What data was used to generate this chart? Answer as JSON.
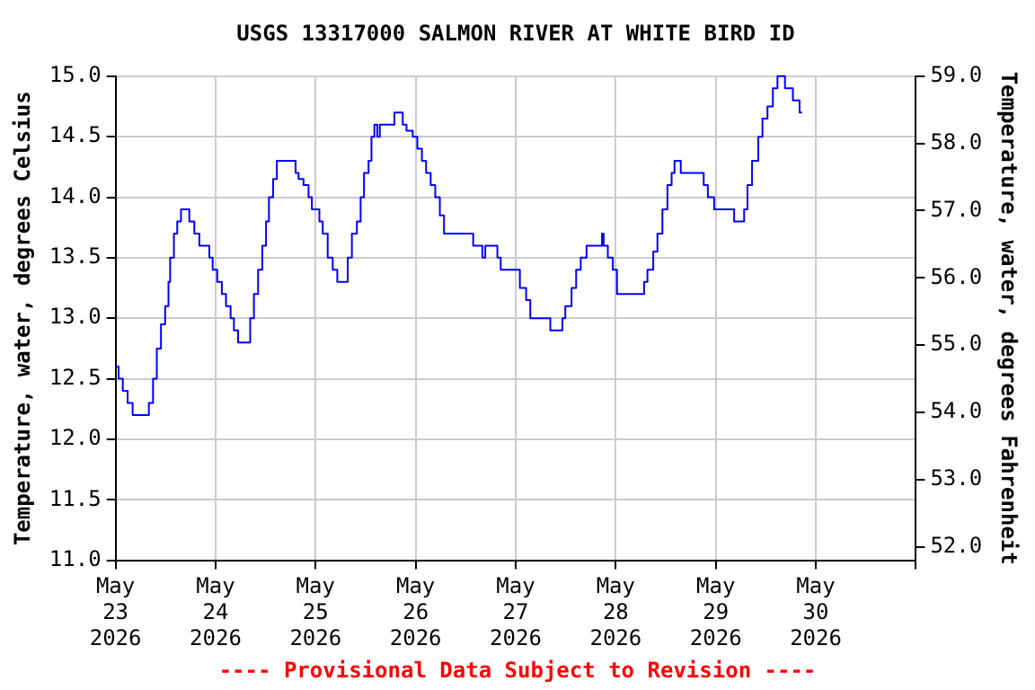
{
  "chart_data": {
    "type": "step",
    "title": "USGS 13317000 SALMON RIVER AT WHITE BIRD ID",
    "ylabel": "Temperature, water, degrees Celsius",
    "y2label": "Temperature, water, degrees Fahrenheit",
    "annotations": [
      "---- Provisional Data Subject to Revision ----"
    ],
    "x": [
      "2026-05-23T00:00",
      "2026-05-23T00:44",
      "2026-05-23T01:45",
      "2026-05-23T02:54",
      "2026-05-23T04:06",
      "2026-05-23T05:12",
      "2026-05-23T08:00",
      "2026-05-23T09:00",
      "2026-05-23T09:54",
      "2026-05-23T10:54",
      "2026-05-23T11:54",
      "2026-05-23T12:42",
      "2026-05-23T13:06",
      "2026-05-23T14:00",
      "2026-05-23T14:48",
      "2026-05-23T15:42",
      "2026-05-23T16:36",
      "2026-05-23T17:42",
      "2026-05-23T18:54",
      "2026-05-23T20:06",
      "2026-05-23T21:06",
      "2026-05-23T22:30",
      "2026-05-23T23:18",
      "2026-05-24T00:24",
      "2026-05-24T01:30",
      "2026-05-24T02:30",
      "2026-05-24T03:36",
      "2026-05-24T04:24",
      "2026-05-24T05:24",
      "2026-05-24T06:18",
      "2026-05-24T08:18",
      "2026-05-24T09:12",
      "2026-05-24T10:12",
      "2026-05-24T11:12",
      "2026-05-24T12:06",
      "2026-05-24T12:48",
      "2026-05-24T13:48",
      "2026-05-24T14:42",
      "2026-05-24T15:54",
      "2026-05-24T19:12",
      "2026-05-24T19:54",
      "2026-05-24T21:06",
      "2026-05-24T22:18",
      "2026-05-24T23:06",
      "2026-05-25T00:54",
      "2026-05-25T01:42",
      "2026-05-25T02:54",
      "2026-05-25T04:06",
      "2026-05-25T05:12",
      "2026-05-25T06:30",
      "2026-05-25T07:42",
      "2026-05-25T08:42",
      "2026-05-25T09:54",
      "2026-05-25T10:48",
      "2026-05-25T11:36",
      "2026-05-25T12:42",
      "2026-05-25T13:24",
      "2026-05-25T14:06",
      "2026-05-25T14:48",
      "2026-05-25T15:24",
      "2026-05-25T16:42",
      "2026-05-25T18:54",
      "2026-05-25T19:48",
      "2026-05-25T20:54",
      "2026-05-25T21:48",
      "2026-05-25T23:18",
      "2026-05-26T00:24",
      "2026-05-26T01:30",
      "2026-05-26T02:30",
      "2026-05-26T03:36",
      "2026-05-26T04:42",
      "2026-05-26T05:48",
      "2026-05-26T06:48",
      "2026-05-26T07:42",
      "2026-05-26T13:48",
      "2026-05-26T14:48",
      "2026-05-26T16:00",
      "2026-05-26T16:42",
      "2026-05-26T17:54",
      "2026-05-26T19:36",
      "2026-05-26T20:24",
      "2026-05-26T22:30",
      "2026-05-27T01:00",
      "2026-05-27T02:30",
      "2026-05-27T03:30",
      "2026-05-27T04:42",
      "2026-05-27T08:18",
      "2026-05-27T09:00",
      "2026-05-27T11:12",
      "2026-05-27T11:54",
      "2026-05-27T13:24",
      "2026-05-27T14:30",
      "2026-05-27T15:36",
      "2026-05-27T17:00",
      "2026-05-27T18:54",
      "2026-05-27T20:42",
      "2026-05-27T21:06",
      "2026-05-27T22:06",
      "2026-05-27T23:18",
      "2026-05-28T00:18",
      "2026-05-28T01:42",
      "2026-05-28T06:48",
      "2026-05-28T07:36",
      "2026-05-28T09:00",
      "2026-05-28T10:00",
      "2026-05-28T11:12",
      "2026-05-28T12:24",
      "2026-05-28T13:24",
      "2026-05-28T14:06",
      "2026-05-28T15:36",
      "2026-05-28T15:54",
      "2026-05-28T21:06",
      "2026-05-28T22:06",
      "2026-05-28T23:36",
      "2026-05-29T01:00",
      "2026-05-29T04:24",
      "2026-05-29T04:42",
      "2026-05-29T06:48",
      "2026-05-29T07:36",
      "2026-05-29T08:42",
      "2026-05-29T10:12",
      "2026-05-29T11:12",
      "2026-05-29T12:24",
      "2026-05-29T13:42",
      "2026-05-29T14:48",
      "2026-05-29T15:36",
      "2026-05-29T16:36",
      "2026-05-29T17:18",
      "2026-05-29T18:30",
      "2026-05-29T19:12",
      "2026-05-29T20:06",
      "2026-05-29T20:42"
    ],
    "series": [
      {
        "color": "#0000ff",
        "values": [
          12.6,
          12.6,
          12.5,
          12.4,
          12.3,
          12.2,
          12.2,
          12.3,
          12.5,
          12.75,
          12.95,
          13.1,
          13.3,
          13.5,
          13.7,
          13.8,
          13.9,
          13.9,
          13.8,
          13.7,
          13.6,
          13.6,
          13.5,
          13.4,
          13.3,
          13.2,
          13.1,
          13.0,
          12.9,
          12.8,
          12.8,
          13.0,
          13.2,
          13.4,
          13.6,
          13.8,
          14.0,
          14.15,
          14.3,
          14.3,
          14.2,
          14.15,
          14.1,
          14.0,
          13.9,
          13.8,
          13.7,
          13.5,
          13.4,
          13.3,
          13.3,
          13.5,
          13.7,
          13.8,
          14.0,
          14.2,
          14.3,
          14.5,
          14.6,
          14.5,
          14.6,
          14.6,
          14.7,
          14.7,
          14.6,
          14.55,
          14.5,
          14.4,
          14.3,
          14.2,
          14.1,
          14.0,
          13.85,
          13.7,
          13.7,
          13.6,
          13.6,
          13.5,
          13.6,
          13.6,
          13.5,
          13.4,
          13.4,
          13.25,
          13.15,
          13.0,
          13.0,
          12.9,
          12.9,
          13.0,
          13.1,
          13.25,
          13.4,
          13.5,
          13.6,
          13.6,
          13.7,
          13.6,
          13.5,
          13.4,
          13.2,
          13.2,
          13.3,
          13.4,
          13.55,
          13.7,
          13.9,
          14.1,
          14.2,
          14.3,
          14.2,
          14.2,
          14.1,
          14.0,
          13.9,
          13.9,
          13.8,
          13.8,
          13.9,
          14.1,
          14.3,
          14.5,
          14.65,
          14.75,
          14.9,
          15.0,
          15.0,
          14.9,
          14.9,
          14.8,
          14.8,
          14.7
        ]
      }
    ],
    "xlim": [
      "2026-05-23",
      "2026-05-31"
    ],
    "xticks": [
      {
        "value": "2026-05-23",
        "label": "May 23 2026"
      },
      {
        "value": "2026-05-24",
        "label": "May 24 2026"
      },
      {
        "value": "2026-05-25",
        "label": "May 25 2026"
      },
      {
        "value": "2026-05-26",
        "label": "May 26 2026"
      },
      {
        "value": "2026-05-27",
        "label": "May 27 2026"
      },
      {
        "value": "2026-05-28",
        "label": "May 28 2026"
      },
      {
        "value": "2026-05-29",
        "label": "May 29 2026"
      },
      {
        "value": "2026-05-30",
        "label": "May 30 2026"
      },
      {
        "value": "2026-05-31",
        "label": null
      }
    ],
    "ylim": [
      11,
      15
    ],
    "yticks": [
      {
        "value": 11,
        "label": "11.0"
      },
      {
        "value": 11.5,
        "label": "11.5"
      },
      {
        "value": 12,
        "label": "12.0"
      },
      {
        "value": 12.5,
        "label": "12.5"
      },
      {
        "value": 13,
        "label": "13.0"
      },
      {
        "value": 13.5,
        "label": "13.5"
      },
      {
        "value": 14,
        "label": "14.0"
      },
      {
        "value": 14.5,
        "label": "14.5"
      },
      {
        "value": 15,
        "label": "15.0"
      }
    ],
    "y2lim": [
      51.8,
      59
    ],
    "y2ticks": [
      {
        "value": 52,
        "label": "52.0"
      },
      {
        "value": 53,
        "label": "53.0"
      },
      {
        "value": 54,
        "label": "54.0"
      },
      {
        "value": 55,
        "label": "55.0"
      },
      {
        "value": 56,
        "label": "56.0"
      },
      {
        "value": 57,
        "label": "57.0"
      },
      {
        "value": 58,
        "label": "58.0"
      },
      {
        "value": 59,
        "label": "59.0"
      }
    ],
    "grid": true,
    "legend": false
  }
}
